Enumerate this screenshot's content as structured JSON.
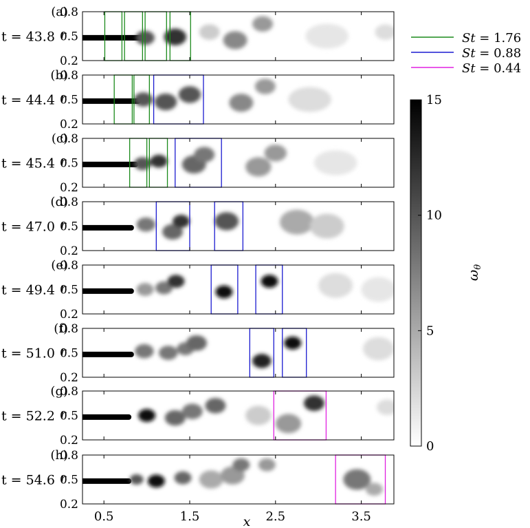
{
  "chart_data": {
    "type": "heatmap",
    "xlabel": "x",
    "ylabel": "r",
    "xlim": [
      0.25,
      3.88
    ],
    "ylim": [
      0.2,
      0.8
    ],
    "x_ticks": [
      "0.5",
      "1.5",
      "2.5",
      "3.5"
    ],
    "x_tick_values": [
      0.5,
      1.5,
      2.5,
      3.5
    ],
    "y_ticks": [
      "0.8",
      "0.5",
      "0.2"
    ],
    "y_tick_values": [
      0.8,
      0.5,
      0.2
    ],
    "grid": false,
    "colormap": "greys",
    "colorbar": {
      "label": "ω",
      "label_sub": "θ",
      "range": [
        0,
        15
      ],
      "ticks": [
        "15",
        "10",
        "5",
        "0"
      ],
      "tick_values": [
        15,
        10,
        5,
        0
      ]
    },
    "legend": {
      "placement": "top-right",
      "entries": [
        {
          "symbol": "St",
          "value": "= 1.76",
          "color": "#1a8a1a"
        },
        {
          "symbol": "St",
          "value": "= 0.88",
          "color": "#1a1ad0"
        },
        {
          "symbol": "St",
          "value": "= 0.44",
          "color": "#e020e0"
        }
      ]
    },
    "panels": [
      {
        "tag": "(a)",
        "t_label": "t = 43.8",
        "boxes": [
          {
            "x0": 0.51,
            "x1": 0.71,
            "st": "1.76"
          },
          {
            "x0": 0.74,
            "x1": 0.95,
            "st": "1.76"
          },
          {
            "x0": 0.98,
            "x1": 1.23,
            "st": "1.76"
          },
          {
            "x0": 1.27,
            "x1": 1.51,
            "st": "1.76"
          }
        ],
        "blobs": [
          {
            "x": 0.98,
            "r": 0.48,
            "s": 0.11,
            "v": 10
          },
          {
            "x": 1.33,
            "r": 0.49,
            "s": 0.13,
            "v": 12
          },
          {
            "x": 1.73,
            "r": 0.55,
            "s": 0.12,
            "v": 3
          },
          {
            "x": 2.03,
            "r": 0.45,
            "s": 0.14,
            "v": 7
          },
          {
            "x": 2.35,
            "r": 0.65,
            "s": 0.12,
            "v": 6
          },
          {
            "x": 3.1,
            "r": 0.5,
            "s": 0.25,
            "v": 1.5
          },
          {
            "x": 3.78,
            "r": 0.55,
            "s": 0.12,
            "v": 2
          }
        ],
        "jet_end": 0.95
      },
      {
        "tag": "(b)",
        "t_label": "t = 44.4",
        "boxes": [
          {
            "x0": 0.62,
            "x1": 0.83,
            "st": "1.76"
          },
          {
            "x0": 0.85,
            "x1": 1.03,
            "st": "1.76"
          },
          {
            "x0": 1.08,
            "x1": 1.66,
            "st": "0.88"
          }
        ],
        "blobs": [
          {
            "x": 0.96,
            "r": 0.5,
            "s": 0.11,
            "v": 10
          },
          {
            "x": 1.22,
            "r": 0.47,
            "s": 0.13,
            "v": 10
          },
          {
            "x": 1.5,
            "r": 0.56,
            "s": 0.13,
            "v": 10
          },
          {
            "x": 2.1,
            "r": 0.46,
            "s": 0.14,
            "v": 7
          },
          {
            "x": 2.38,
            "r": 0.66,
            "s": 0.12,
            "v": 6
          },
          {
            "x": 2.9,
            "r": 0.5,
            "s": 0.25,
            "v": 2
          }
        ],
        "jet_end": 0.93
      },
      {
        "tag": "(c)",
        "t_label": "t = 45.4",
        "boxes": [
          {
            "x0": 0.8,
            "x1": 1.0,
            "st": "1.76"
          },
          {
            "x0": 1.03,
            "x1": 1.24,
            "st": "1.76"
          },
          {
            "x0": 1.33,
            "x1": 1.87,
            "st": "0.88"
          }
        ],
        "blobs": [
          {
            "x": 0.95,
            "r": 0.49,
            "s": 0.1,
            "v": 10
          },
          {
            "x": 1.14,
            "r": 0.52,
            "s": 0.1,
            "v": 12
          },
          {
            "x": 1.55,
            "r": 0.48,
            "s": 0.14,
            "v": 9
          },
          {
            "x": 1.67,
            "r": 0.6,
            "s": 0.12,
            "v": 8
          },
          {
            "x": 2.3,
            "r": 0.45,
            "s": 0.15,
            "v": 6
          },
          {
            "x": 2.5,
            "r": 0.62,
            "s": 0.13,
            "v": 6
          },
          {
            "x": 3.2,
            "r": 0.5,
            "s": 0.25,
            "v": 1.5
          }
        ],
        "jet_end": 0.9
      },
      {
        "tag": "(d)",
        "t_label": "t = 47.0",
        "boxes": [
          {
            "x0": 1.11,
            "x1": 1.5,
            "st": "0.88"
          },
          {
            "x0": 1.79,
            "x1": 2.12,
            "st": "0.88"
          }
        ],
        "blobs": [
          {
            "x": 0.99,
            "r": 0.52,
            "s": 0.11,
            "v": 8
          },
          {
            "x": 1.3,
            "r": 0.43,
            "s": 0.12,
            "v": 9
          },
          {
            "x": 1.4,
            "r": 0.56,
            "s": 0.1,
            "v": 12
          },
          {
            "x": 1.93,
            "r": 0.56,
            "s": 0.14,
            "v": 10
          },
          {
            "x": 2.75,
            "r": 0.55,
            "s": 0.2,
            "v": 5
          },
          {
            "x": 3.1,
            "r": 0.5,
            "s": 0.2,
            "v": 3
          }
        ],
        "jet_end": 0.85
      },
      {
        "tag": "(e)",
        "t_label": "t = 49.4",
        "boxes": [
          {
            "x0": 1.75,
            "x1": 2.06,
            "st": "0.88"
          },
          {
            "x0": 2.27,
            "x1": 2.58,
            "st": "0.88"
          }
        ],
        "blobs": [
          {
            "x": 0.98,
            "r": 0.5,
            "s": 0.1,
            "v": 6
          },
          {
            "x": 1.2,
            "r": 0.52,
            "s": 0.1,
            "v": 8
          },
          {
            "x": 1.34,
            "r": 0.6,
            "s": 0.1,
            "v": 12
          },
          {
            "x": 1.9,
            "r": 0.47,
            "s": 0.1,
            "v": 14
          },
          {
            "x": 2.43,
            "r": 0.6,
            "s": 0.1,
            "v": 14
          },
          {
            "x": 3.2,
            "r": 0.55,
            "s": 0.2,
            "v": 2
          },
          {
            "x": 3.7,
            "r": 0.5,
            "s": 0.2,
            "v": 1.5
          }
        ],
        "jet_end": 0.85
      },
      {
        "tag": "(f)",
        "t_label": "t = 51.0",
        "boxes": [
          {
            "x0": 2.2,
            "x1": 2.48,
            "st": "0.88"
          },
          {
            "x0": 2.58,
            "x1": 2.86,
            "st": "0.88"
          }
        ],
        "blobs": [
          {
            "x": 0.97,
            "r": 0.52,
            "s": 0.11,
            "v": 8
          },
          {
            "x": 1.25,
            "r": 0.5,
            "s": 0.11,
            "v": 8
          },
          {
            "x": 1.45,
            "r": 0.55,
            "s": 0.1,
            "v": 8
          },
          {
            "x": 1.58,
            "r": 0.62,
            "s": 0.12,
            "v": 9
          },
          {
            "x": 2.34,
            "r": 0.4,
            "s": 0.11,
            "v": 13
          },
          {
            "x": 2.7,
            "r": 0.62,
            "s": 0.1,
            "v": 14
          },
          {
            "x": 3.7,
            "r": 0.55,
            "s": 0.18,
            "v": 2
          }
        ],
        "jet_end": 0.85
      },
      {
        "tag": "(g)",
        "t_label": "t = 52.2",
        "boxes": [
          {
            "x0": 2.48,
            "x1": 3.09,
            "st": "0.44"
          }
        ],
        "blobs": [
          {
            "x": 1.0,
            "r": 0.5,
            "s": 0.1,
            "v": 14
          },
          {
            "x": 1.33,
            "r": 0.47,
            "s": 0.12,
            "v": 9
          },
          {
            "x": 1.53,
            "r": 0.55,
            "s": 0.12,
            "v": 8
          },
          {
            "x": 1.8,
            "r": 0.62,
            "s": 0.12,
            "v": 9
          },
          {
            "x": 2.3,
            "r": 0.5,
            "s": 0.15,
            "v": 3
          },
          {
            "x": 2.65,
            "r": 0.4,
            "s": 0.15,
            "v": 6
          },
          {
            "x": 2.95,
            "r": 0.65,
            "s": 0.12,
            "v": 12
          },
          {
            "x": 3.8,
            "r": 0.6,
            "s": 0.12,
            "v": 2
          }
        ],
        "jet_end": 0.82
      },
      {
        "tag": "(h)",
        "t_label": "t = 54.6",
        "boxes": [
          {
            "x0": 3.2,
            "x1": 3.78,
            "st": "0.44"
          }
        ],
        "blobs": [
          {
            "x": 0.88,
            "r": 0.5,
            "s": 0.08,
            "v": 10
          },
          {
            "x": 1.11,
            "r": 0.48,
            "s": 0.1,
            "v": 14
          },
          {
            "x": 1.42,
            "r": 0.52,
            "s": 0.1,
            "v": 9
          },
          {
            "x": 1.75,
            "r": 0.5,
            "s": 0.14,
            "v": 5
          },
          {
            "x": 2.0,
            "r": 0.55,
            "s": 0.14,
            "v": 6
          },
          {
            "x": 2.1,
            "r": 0.68,
            "s": 0.1,
            "v": 8
          },
          {
            "x": 2.4,
            "r": 0.68,
            "s": 0.1,
            "v": 6
          },
          {
            "x": 3.45,
            "r": 0.5,
            "s": 0.16,
            "v": 8
          },
          {
            "x": 3.65,
            "r": 0.38,
            "s": 0.1,
            "v": 5
          }
        ],
        "jet_end": 0.82
      }
    ]
  }
}
